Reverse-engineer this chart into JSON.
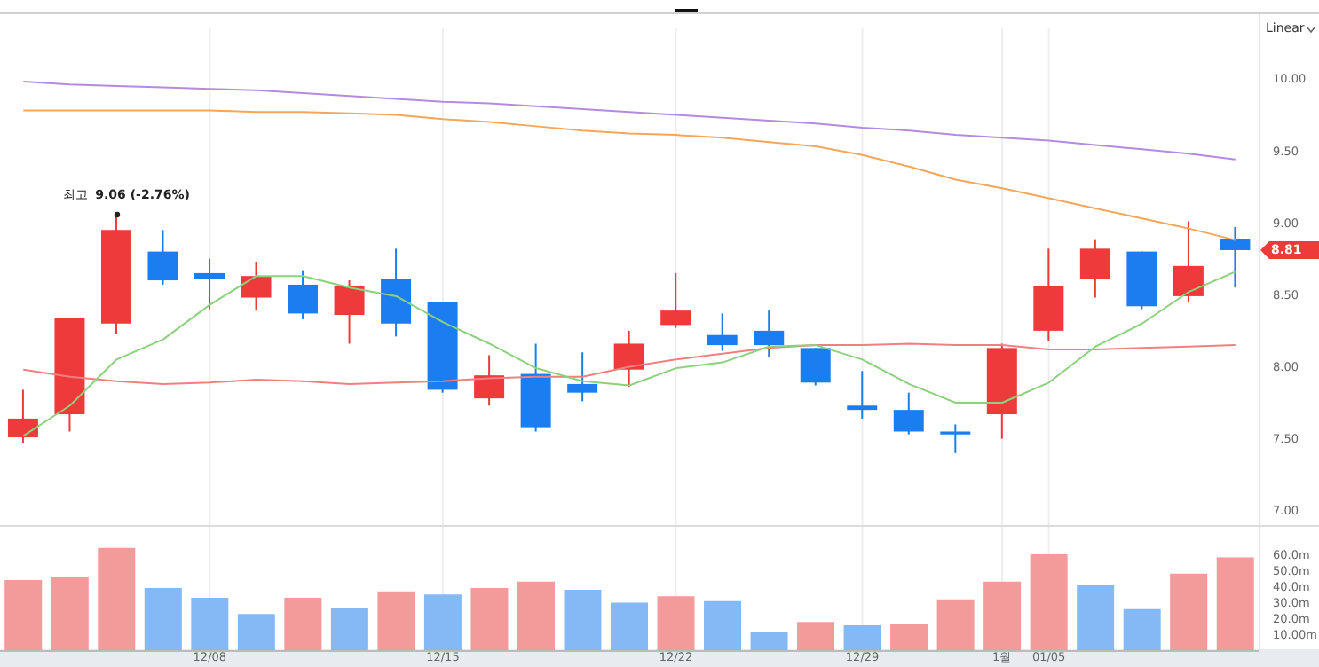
{
  "chart_data": [
    {
      "type": "candlestick",
      "categories": [
        null,
        null,
        null,
        null,
        null,
        null,
        null,
        null,
        null,
        null,
        null,
        null,
        null,
        null,
        null,
        null,
        null,
        null,
        null,
        null,
        null,
        null,
        null,
        null,
        null,
        null,
        null
      ],
      "ohlc": [
        [
          7.51,
          7.84,
          7.47,
          7.64
        ],
        [
          7.67,
          8.34,
          7.55,
          8.34
        ],
        [
          8.3,
          9.06,
          8.23,
          8.95
        ],
        [
          8.8,
          8.95,
          8.57,
          8.6
        ],
        [
          8.65,
          8.75,
          8.4,
          8.61
        ],
        [
          8.48,
          8.73,
          8.39,
          8.63
        ],
        [
          8.57,
          8.67,
          8.33,
          8.37
        ],
        [
          8.36,
          8.6,
          8.16,
          8.56
        ],
        [
          8.61,
          8.82,
          8.21,
          8.3
        ],
        [
          8.45,
          8.45,
          7.82,
          7.84
        ],
        [
          7.78,
          8.08,
          7.73,
          7.94
        ],
        [
          7.95,
          8.16,
          7.55,
          7.58
        ],
        [
          7.88,
          8.1,
          7.76,
          7.82
        ],
        [
          7.98,
          8.25,
          7.86,
          8.16
        ],
        [
          8.29,
          8.65,
          8.27,
          8.39
        ],
        [
          8.22,
          8.37,
          8.11,
          8.15
        ],
        [
          8.25,
          8.39,
          8.07,
          8.15
        ],
        [
          8.13,
          8.13,
          7.87,
          7.89
        ],
        [
          7.73,
          7.97,
          7.64,
          7.7
        ],
        [
          7.7,
          7.82,
          7.53,
          7.55
        ],
        [
          7.55,
          7.6,
          7.4,
          7.53
        ],
        [
          7.67,
          8.16,
          7.5,
          8.13
        ],
        [
          8.25,
          8.82,
          8.18,
          8.56
        ],
        [
          8.61,
          8.88,
          8.48,
          8.82
        ],
        [
          8.8,
          8.8,
          8.4,
          8.42
        ],
        [
          8.49,
          9.01,
          8.45,
          8.7
        ],
        [
          8.89,
          8.97,
          8.55,
          8.81
        ]
      ],
      "colors": [
        "#ee3a3a",
        "#ee3a3a",
        "#ee3a3a",
        "#1a7ef0",
        "#1a7ef0",
        "#ee3a3a",
        "#1a7ef0",
        "#ee3a3a",
        "#1a7ef0",
        "#1a7ef0",
        "#ee3a3a",
        "#1a7ef0",
        "#1a7ef0",
        "#ee3a3a",
        "#ee3a3a",
        "#1a7ef0",
        "#1a7ef0",
        "#1a7ef0",
        "#1a7ef0",
        "#1a7ef0",
        "#1a7ef0",
        "#ee3a3a",
        "#ee3a3a",
        "#ee3a3a",
        "#1a7ef0",
        "#ee3a3a",
        "#1a7ef0"
      ],
      "series": [
        {
          "type": "line",
          "color": "#b48be0",
          "values": [
            9.98,
            9.96,
            9.95,
            9.94,
            9.93,
            9.92,
            9.9,
            9.88,
            9.86,
            9.84,
            9.83,
            9.81,
            9.79,
            9.77,
            9.75,
            9.73,
            9.71,
            9.69,
            9.66,
            9.64,
            9.61,
            9.59,
            9.57,
            9.54,
            9.51,
            9.48,
            9.44
          ]
        },
        {
          "type": "line",
          "color": "#f5a65b",
          "values": [
            9.78,
            9.78,
            9.78,
            9.78,
            9.78,
            9.77,
            9.77,
            9.76,
            9.75,
            9.72,
            9.7,
            9.67,
            9.64,
            9.62,
            9.61,
            9.59,
            9.56,
            9.53,
            9.47,
            9.39,
            9.3,
            9.24,
            9.17,
            9.1,
            9.03,
            8.96,
            8.88
          ]
        },
        {
          "type": "line",
          "color": "#f08080",
          "values": [
            7.98,
            7.93,
            7.9,
            7.88,
            7.89,
            7.91,
            7.9,
            7.88,
            7.89,
            7.9,
            7.92,
            7.93,
            7.93,
            8.0,
            8.05,
            8.09,
            8.13,
            8.15,
            8.15,
            8.16,
            8.15,
            8.15,
            8.12,
            8.12,
            8.13,
            8.14,
            8.15
          ]
        },
        {
          "type": "line",
          "color": "#8cd17d",
          "values": [
            7.52,
            7.73,
            8.05,
            8.19,
            8.43,
            8.63,
            8.63,
            8.55,
            8.49,
            8.31,
            8.16,
            7.99,
            7.9,
            7.87,
            7.99,
            8.03,
            8.14,
            8.15,
            8.05,
            7.88,
            7.75,
            7.75,
            7.89,
            8.14,
            8.3,
            8.52,
            8.66
          ]
        }
      ],
      "ylim": [
        6.9,
        10.35
      ],
      "yticks": [
        {
          "value": 7,
          "label": "7.00"
        },
        {
          "value": 7.5,
          "label": "7.50"
        },
        {
          "value": 8,
          "label": "8.00"
        },
        {
          "value": 8.5,
          "label": "8.50"
        },
        {
          "value": 9,
          "label": "9.00"
        },
        {
          "value": 9.5,
          "label": "9.50"
        },
        {
          "value": 10,
          "label": "10.00"
        }
      ],
      "grid": "x",
      "tick_labels": "y",
      "annotations": [
        "최고 9.06 (-2.76%)",
        "8.81",
        "Linear"
      ]
    },
    {
      "type": "bar",
      "categories": [
        null,
        null,
        null,
        null,
        "12/08",
        null,
        null,
        null,
        null,
        "12/15",
        null,
        null,
        null,
        null,
        "12/22",
        null,
        null,
        null,
        "12/29",
        null,
        null,
        "1월",
        "01/05",
        null,
        null,
        null,
        null
      ],
      "values": [
        44,
        46,
        64,
        39,
        33,
        23,
        33,
        27,
        37,
        35,
        39,
        43,
        38,
        30,
        34,
        31,
        12,
        18,
        16,
        17,
        32,
        43,
        60,
        41,
        26,
        48,
        58
      ],
      "colors": [
        "#f39a9a",
        "#f39a9a",
        "#f39a9a",
        "#85b9f5",
        "#85b9f5",
        "#85b9f5",
        "#f39a9a",
        "#85b9f5",
        "#f39a9a",
        "#85b9f5",
        "#f39a9a",
        "#f39a9a",
        "#85b9f5",
        "#85b9f5",
        "#f39a9a",
        "#85b9f5",
        "#85b9f5",
        "#f39a9a",
        "#85b9f5",
        "#f39a9a",
        "#f39a9a",
        "#f39a9a",
        "#f39a9a",
        "#85b9f5",
        "#85b9f5",
        "#f39a9a",
        "#f39a9a"
      ],
      "ylim": [
        0,
        77
      ],
      "yticks": [
        {
          "value": 10,
          "label": "10.00m"
        },
        {
          "value": 20,
          "label": "20.0m"
        },
        {
          "value": 30,
          "label": "30.0m"
        },
        {
          "value": 40,
          "label": "40.0m"
        },
        {
          "value": 50,
          "label": "50.0m"
        },
        {
          "value": 60,
          "label": "60.0m"
        }
      ],
      "grid": "x"
    }
  ]
}
